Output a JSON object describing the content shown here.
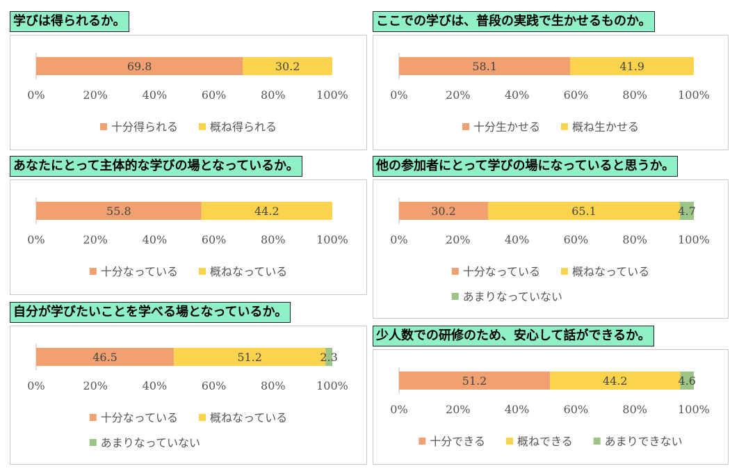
{
  "colors": {
    "full": "#f0a071",
    "mostly": "#fcd34d",
    "not": "#9cc486",
    "axis": "#bfbfbf"
  },
  "chart_data": [
    {
      "type": "bar",
      "orientation": "horizontal-stacked-100",
      "title": "学びは得られるか。",
      "series": [
        {
          "name": "十分得られる",
          "values": [
            69.8
          ]
        },
        {
          "name": "概ね得られる",
          "values": [
            30.2
          ]
        }
      ],
      "xticks": [
        "0%",
        "20%",
        "40%",
        "60%",
        "80%",
        "100%"
      ],
      "xlim": [
        0,
        100
      ],
      "legend_position": "bottom"
    },
    {
      "type": "bar",
      "orientation": "horizontal-stacked-100",
      "title": "ここでの学びは、普段の実践で生かせるものか。",
      "series": [
        {
          "name": "十分生かせる",
          "values": [
            58.1
          ]
        },
        {
          "name": "概ね生かせる",
          "values": [
            41.9
          ]
        }
      ],
      "xticks": [
        "0%",
        "20%",
        "40%",
        "60%",
        "80%",
        "100%"
      ],
      "xlim": [
        0,
        100
      ],
      "legend_position": "bottom"
    },
    {
      "type": "bar",
      "orientation": "horizontal-stacked-100",
      "title": "あなたにとって主体的な学びの場となっているか。",
      "series": [
        {
          "name": "十分なっている",
          "values": [
            55.8
          ]
        },
        {
          "name": "概ねなっている",
          "values": [
            44.2
          ]
        }
      ],
      "xticks": [
        "0%",
        "20%",
        "40%",
        "60%",
        "80%",
        "100%"
      ],
      "xlim": [
        0,
        100
      ],
      "legend_position": "bottom"
    },
    {
      "type": "bar",
      "orientation": "horizontal-stacked-100",
      "title": "他の参加者にとって学びの場になっていると思うか。",
      "series": [
        {
          "name": "十分なっている",
          "values": [
            30.2
          ]
        },
        {
          "name": "概ねなっている",
          "values": [
            65.1
          ]
        },
        {
          "name": "あまりなっていない",
          "values": [
            4.7
          ]
        }
      ],
      "xticks": [
        "0%",
        "20%",
        "40%",
        "60%",
        "80%",
        "100%"
      ],
      "xlim": [
        0,
        100
      ],
      "legend_position": "bottom"
    },
    {
      "type": "bar",
      "orientation": "horizontal-stacked-100",
      "title": "自分が学びたいことを学べる場となっているか。",
      "series": [
        {
          "name": "十分なっている",
          "values": [
            46.5
          ]
        },
        {
          "name": "概ねなっている",
          "values": [
            51.2
          ]
        },
        {
          "name": "あまりなっていない",
          "values": [
            2.3
          ]
        }
      ],
      "xticks": [
        "0%",
        "20%",
        "40%",
        "60%",
        "80%",
        "100%"
      ],
      "xlim": [
        0,
        100
      ],
      "legend_position": "bottom"
    },
    {
      "type": "bar",
      "orientation": "horizontal-stacked-100",
      "title": "少人数での研修のため、安心して話ができるか。",
      "series": [
        {
          "name": "十分できる",
          "values": [
            51.2
          ]
        },
        {
          "name": "概ねできる",
          "values": [
            44.2
          ]
        },
        {
          "name": "あまりできない",
          "values": [
            4.6
          ]
        }
      ],
      "xticks": [
        "0%",
        "20%",
        "40%",
        "60%",
        "80%",
        "100%"
      ],
      "xlim": [
        0,
        100
      ],
      "legend_position": "bottom"
    }
  ]
}
